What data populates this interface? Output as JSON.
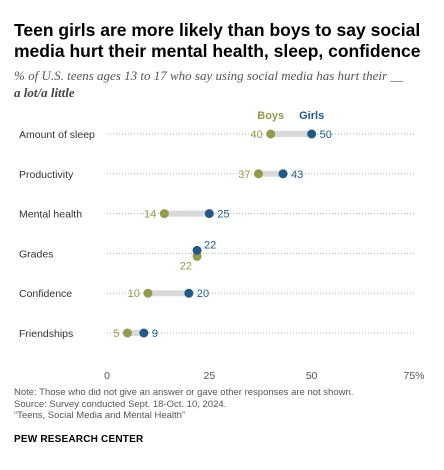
{
  "title": "Teen girls are more likely than boys to say social media hurt their mental health, sleep, confidence",
  "subtitle": "% of U.S. teens ages 13 to 17 who say using social media has hurt their __",
  "subtitle_bold": "a lot/a little",
  "notes": [
    "Note: Those who did not give an answer or gave other responses are not shown.",
    "Source: Survey conducted Sept. 18-Oct. 10, 2024.",
    "“Teens, Social Media and Mental Health”"
  ],
  "brand": "PEW RESEARCH CENTER",
  "colors": {
    "boys": "#949a4a",
    "girls": "#1f5b86",
    "connector": "#d9d9d9",
    "grid": "#b0b0b0"
  },
  "chart_data": {
    "type": "dot",
    "categories": [
      "Amount of sleep",
      "Productivity",
      "Mental health",
      "Grades",
      "Confidence",
      "Friendships"
    ],
    "series": [
      {
        "name": "Boys",
        "values": [
          40,
          37,
          14,
          22,
          10,
          5
        ]
      },
      {
        "name": "Girls",
        "values": [
          50,
          43,
          25,
          22,
          20,
          9
        ]
      }
    ],
    "xlim": [
      0,
      75
    ],
    "xticks": [
      0,
      25,
      50,
      75
    ],
    "xtick_labels": [
      "0",
      "25",
      "50",
      "75%"
    ],
    "legend_placement": "above first row, over the dots",
    "grid": "dotted horizontal row lines"
  }
}
